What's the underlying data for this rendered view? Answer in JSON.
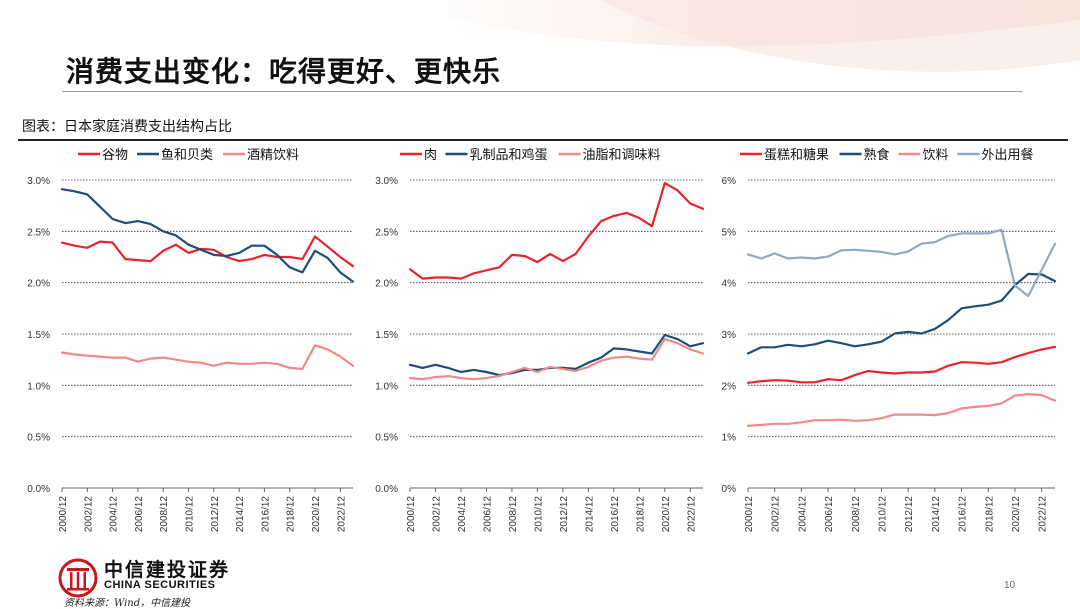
{
  "page": {
    "title": "消费支出变化：吃得更好、更快乐",
    "figure_label": "图表：日本家庭消费支出结构占比",
    "source": "资料来源：Wind，中信建投",
    "page_number": "10",
    "logo_cn": "中信建投证券",
    "logo_en": "CHINA SECURITIES"
  },
  "colors": {
    "red": "#e8232a",
    "navy": "#1e4e79",
    "pink": "#f08a8a",
    "steel": "#8fa9c3",
    "grid": "#333333",
    "axis_text": "#333333"
  },
  "chart_data": [
    {
      "type": "line",
      "categories": [
        "2000/12",
        "2001/12",
        "2002/12",
        "2003/12",
        "2004/12",
        "2005/12",
        "2006/12",
        "2007/12",
        "2008/12",
        "2009/12",
        "2010/12",
        "2011/12",
        "2012/12",
        "2013/12",
        "2014/12",
        "2015/12",
        "2016/12",
        "2017/12",
        "2018/12",
        "2019/12",
        "2020/12",
        "2021/12",
        "2022/12",
        "2023/12"
      ],
      "tick_labels": [
        "2000/12",
        "2002/12",
        "2004/12",
        "2006/12",
        "2008/12",
        "2010/12",
        "2012/12",
        "2014/12",
        "2016/12",
        "2018/12",
        "2020/12",
        "2022/12"
      ],
      "ylim": [
        0,
        3
      ],
      "y_ticks": [
        "0.0%",
        "0.5%",
        "1.0%",
        "1.5%",
        "2.0%",
        "2.5%",
        "3.0%"
      ],
      "series": [
        {
          "name": "谷物",
          "color": "red",
          "values": [
            2.39,
            2.36,
            2.34,
            2.4,
            2.39,
            2.23,
            2.22,
            2.21,
            2.31,
            2.37,
            2.29,
            2.33,
            2.32,
            2.25,
            2.21,
            2.23,
            2.27,
            2.25,
            2.25,
            2.23,
            2.45,
            2.35,
            2.25,
            2.16
          ]
        },
        {
          "name": "鱼和贝类",
          "color": "navy",
          "values": [
            2.91,
            2.89,
            2.86,
            2.74,
            2.62,
            2.58,
            2.6,
            2.57,
            2.5,
            2.46,
            2.37,
            2.32,
            2.27,
            2.26,
            2.29,
            2.36,
            2.36,
            2.27,
            2.15,
            2.1,
            2.31,
            2.24,
            2.1,
            2.01
          ]
        },
        {
          "name": "酒精饮料",
          "color": "pink",
          "values": [
            1.32,
            1.3,
            1.29,
            1.28,
            1.27,
            1.27,
            1.23,
            1.26,
            1.27,
            1.25,
            1.23,
            1.22,
            1.19,
            1.22,
            1.21,
            1.21,
            1.22,
            1.21,
            1.17,
            1.16,
            1.39,
            1.35,
            1.28,
            1.19
          ]
        }
      ]
    },
    {
      "type": "line",
      "categories": [
        "2000/12",
        "2001/12",
        "2002/12",
        "2003/12",
        "2004/12",
        "2005/12",
        "2006/12",
        "2007/12",
        "2008/12",
        "2009/12",
        "2010/12",
        "2011/12",
        "2012/12",
        "2013/12",
        "2014/12",
        "2015/12",
        "2016/12",
        "2017/12",
        "2018/12",
        "2019/12",
        "2020/12",
        "2021/12",
        "2022/12",
        "2023/12"
      ],
      "tick_labels": [
        "2000/12",
        "2002/12",
        "2004/12",
        "2006/12",
        "2008/12",
        "2010/12",
        "2012/12",
        "2014/12",
        "2016/12",
        "2018/12",
        "2020/12",
        "2022/12"
      ],
      "ylim": [
        0,
        3
      ],
      "y_ticks": [
        "0.0%",
        "0.5%",
        "1.0%",
        "1.5%",
        "2.0%",
        "2.5%",
        "3.0%"
      ],
      "series": [
        {
          "name": "肉",
          "color": "red",
          "values": [
            2.13,
            2.04,
            2.05,
            2.05,
            2.04,
            2.09,
            2.12,
            2.15,
            2.27,
            2.26,
            2.2,
            2.28,
            2.21,
            2.28,
            2.45,
            2.6,
            2.65,
            2.68,
            2.63,
            2.55,
            2.97,
            2.9,
            2.77,
            2.72
          ]
        },
        {
          "name": "乳制品和鸡蛋",
          "color": "navy",
          "values": [
            1.2,
            1.17,
            1.2,
            1.17,
            1.13,
            1.15,
            1.13,
            1.1,
            1.12,
            1.15,
            1.15,
            1.17,
            1.17,
            1.16,
            1.22,
            1.27,
            1.36,
            1.35,
            1.33,
            1.31,
            1.49,
            1.45,
            1.38,
            1.41
          ]
        },
        {
          "name": "油脂和调味料",
          "color": "pink",
          "values": [
            1.07,
            1.06,
            1.08,
            1.09,
            1.07,
            1.06,
            1.07,
            1.09,
            1.13,
            1.17,
            1.13,
            1.18,
            1.16,
            1.14,
            1.18,
            1.24,
            1.27,
            1.28,
            1.26,
            1.25,
            1.45,
            1.41,
            1.35,
            1.31
          ]
        }
      ]
    },
    {
      "type": "line",
      "categories": [
        "2000/12",
        "2001/12",
        "2002/12",
        "2003/12",
        "2004/12",
        "2005/12",
        "2006/12",
        "2007/12",
        "2008/12",
        "2009/12",
        "2010/12",
        "2011/12",
        "2012/12",
        "2013/12",
        "2014/12",
        "2015/12",
        "2016/12",
        "2017/12",
        "2018/12",
        "2019/12",
        "2020/12",
        "2021/12",
        "2022/12",
        "2023/12"
      ],
      "tick_labels": [
        "2000/12",
        "2002/12",
        "2004/12",
        "2006/12",
        "2008/12",
        "2010/12",
        "2012/12",
        "2014/12",
        "2016/12",
        "2018/12",
        "2020/12",
        "2022/12"
      ],
      "ylim": [
        0,
        6
      ],
      "y_ticks": [
        "0%",
        "1%",
        "2%",
        "3%",
        "4%",
        "5%",
        "6%"
      ],
      "series": [
        {
          "name": "蛋糕和糖果",
          "color": "red",
          "values": [
            2.05,
            2.08,
            2.1,
            2.09,
            2.06,
            2.06,
            2.12,
            2.1,
            2.2,
            2.28,
            2.25,
            2.23,
            2.25,
            2.25,
            2.27,
            2.38,
            2.45,
            2.44,
            2.42,
            2.45,
            2.55,
            2.63,
            2.7,
            2.75
          ]
        },
        {
          "name": "熟食",
          "color": "navy",
          "values": [
            2.62,
            2.74,
            2.74,
            2.79,
            2.76,
            2.8,
            2.87,
            2.82,
            2.76,
            2.8,
            2.85,
            3.01,
            3.04,
            3.01,
            3.1,
            3.27,
            3.5,
            3.54,
            3.57,
            3.65,
            3.95,
            4.17,
            4.16,
            4.03
          ]
        },
        {
          "name": "饮料",
          "color": "pink",
          "values": [
            1.21,
            1.23,
            1.25,
            1.25,
            1.28,
            1.32,
            1.32,
            1.33,
            1.31,
            1.32,
            1.36,
            1.43,
            1.43,
            1.43,
            1.42,
            1.46,
            1.55,
            1.58,
            1.6,
            1.65,
            1.8,
            1.83,
            1.81,
            1.7
          ]
        },
        {
          "name": "外出用餐",
          "color": "steel",
          "values": [
            4.55,
            4.47,
            4.57,
            4.47,
            4.49,
            4.47,
            4.51,
            4.63,
            4.64,
            4.62,
            4.6,
            4.55,
            4.61,
            4.76,
            4.79,
            4.91,
            4.96,
            4.96,
            4.96,
            5.03,
            3.94,
            3.74,
            4.25,
            4.76
          ]
        }
      ]
    }
  ]
}
